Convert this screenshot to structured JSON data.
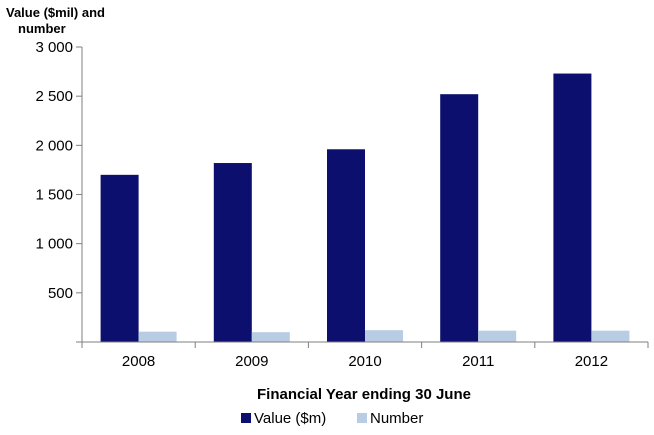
{
  "chart_data": {
    "type": "bar",
    "title": "",
    "ylabel_lines": [
      "Value ($mil) and",
      "number"
    ],
    "xlabel": "Financial Year ending 30 June",
    "categories": [
      "2008",
      "2009",
      "2010",
      "2011",
      "2012"
    ],
    "series": [
      {
        "name": "Value ($m)",
        "color": "#0d0f6e",
        "values": [
          1700,
          1820,
          1960,
          2520,
          2730
        ]
      },
      {
        "name": "Number",
        "color": "#b8cce4",
        "values": [
          105,
          100,
          120,
          115,
          115
        ]
      }
    ],
    "ylim": [
      0,
      3000
    ],
    "yticks": [
      500,
      1000,
      1500,
      2000,
      2500,
      3000
    ],
    "ytick_labels": [
      "500",
      "1 000",
      "1 500",
      "2 000",
      "2 500",
      "3 000"
    ],
    "grid": false,
    "legend_position": "bottom"
  }
}
